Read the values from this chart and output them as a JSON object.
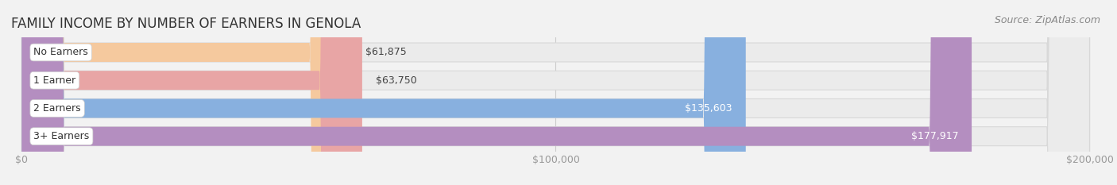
{
  "title": "FAMILY INCOME BY NUMBER OF EARNERS IN GENOLA",
  "source": "Source: ZipAtlas.com",
  "categories": [
    "No Earners",
    "1 Earner",
    "2 Earners",
    "3+ Earners"
  ],
  "values": [
    61875,
    63750,
    135603,
    177917
  ],
  "bar_colors": [
    "#f5c99e",
    "#e8a5a5",
    "#88b0df",
    "#b48ec0"
  ],
  "label_colors": [
    "#444444",
    "#444444",
    "#ffffff",
    "#ffffff"
  ],
  "x_max": 200000,
  "x_ticks": [
    0,
    100000,
    200000
  ],
  "x_tick_labels": [
    "$0",
    "$100,000",
    "$200,000"
  ],
  "background_color": "#f2f2f2",
  "bar_bg_color": "#ebebeb",
  "bar_bg_edge_color": "#d8d8d8",
  "title_fontsize": 12,
  "source_fontsize": 9,
  "label_fontsize": 9,
  "tick_fontsize": 9,
  "category_fontsize": 9
}
